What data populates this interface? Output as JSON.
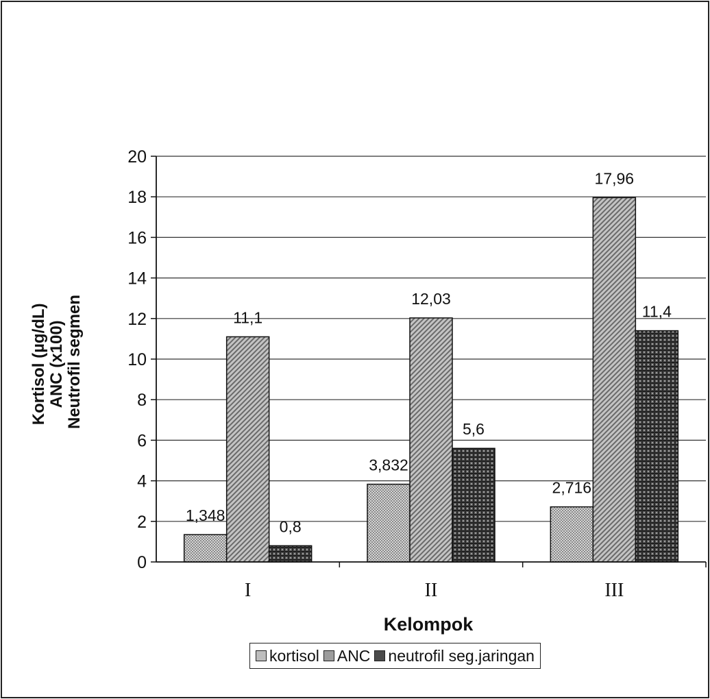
{
  "chart_data": {
    "type": "bar",
    "title": "",
    "xlabel": "Kelompok",
    "ylabel_lines": [
      "Kortisol (µg/dL)",
      "ANC (x100)",
      "Neutrofil segmen"
    ],
    "categories": [
      "I",
      "II",
      "III"
    ],
    "ylim": [
      0,
      20
    ],
    "yticks": [
      0,
      2,
      4,
      6,
      8,
      10,
      12,
      14,
      16,
      18,
      20
    ],
    "grid": true,
    "legend_position": "bottom",
    "series": [
      {
        "name": "kortisol",
        "values": [
          1.348,
          3.832,
          2.716
        ],
        "labels": [
          "1,348",
          "3,832",
          "2,716"
        ],
        "color": "#bdbdbd"
      },
      {
        "name": "ANC",
        "values": [
          11.1,
          12.03,
          17.96
        ],
        "labels": [
          "11,1",
          "12,03",
          "17,96"
        ],
        "color": "#9c9c9c"
      },
      {
        "name": "neutrofil seg.jaringan",
        "values": [
          0.8,
          5.6,
          11.4
        ],
        "labels": [
          "0,8",
          "5,6",
          "11,4"
        ],
        "color": "#4a4a4a"
      }
    ]
  }
}
